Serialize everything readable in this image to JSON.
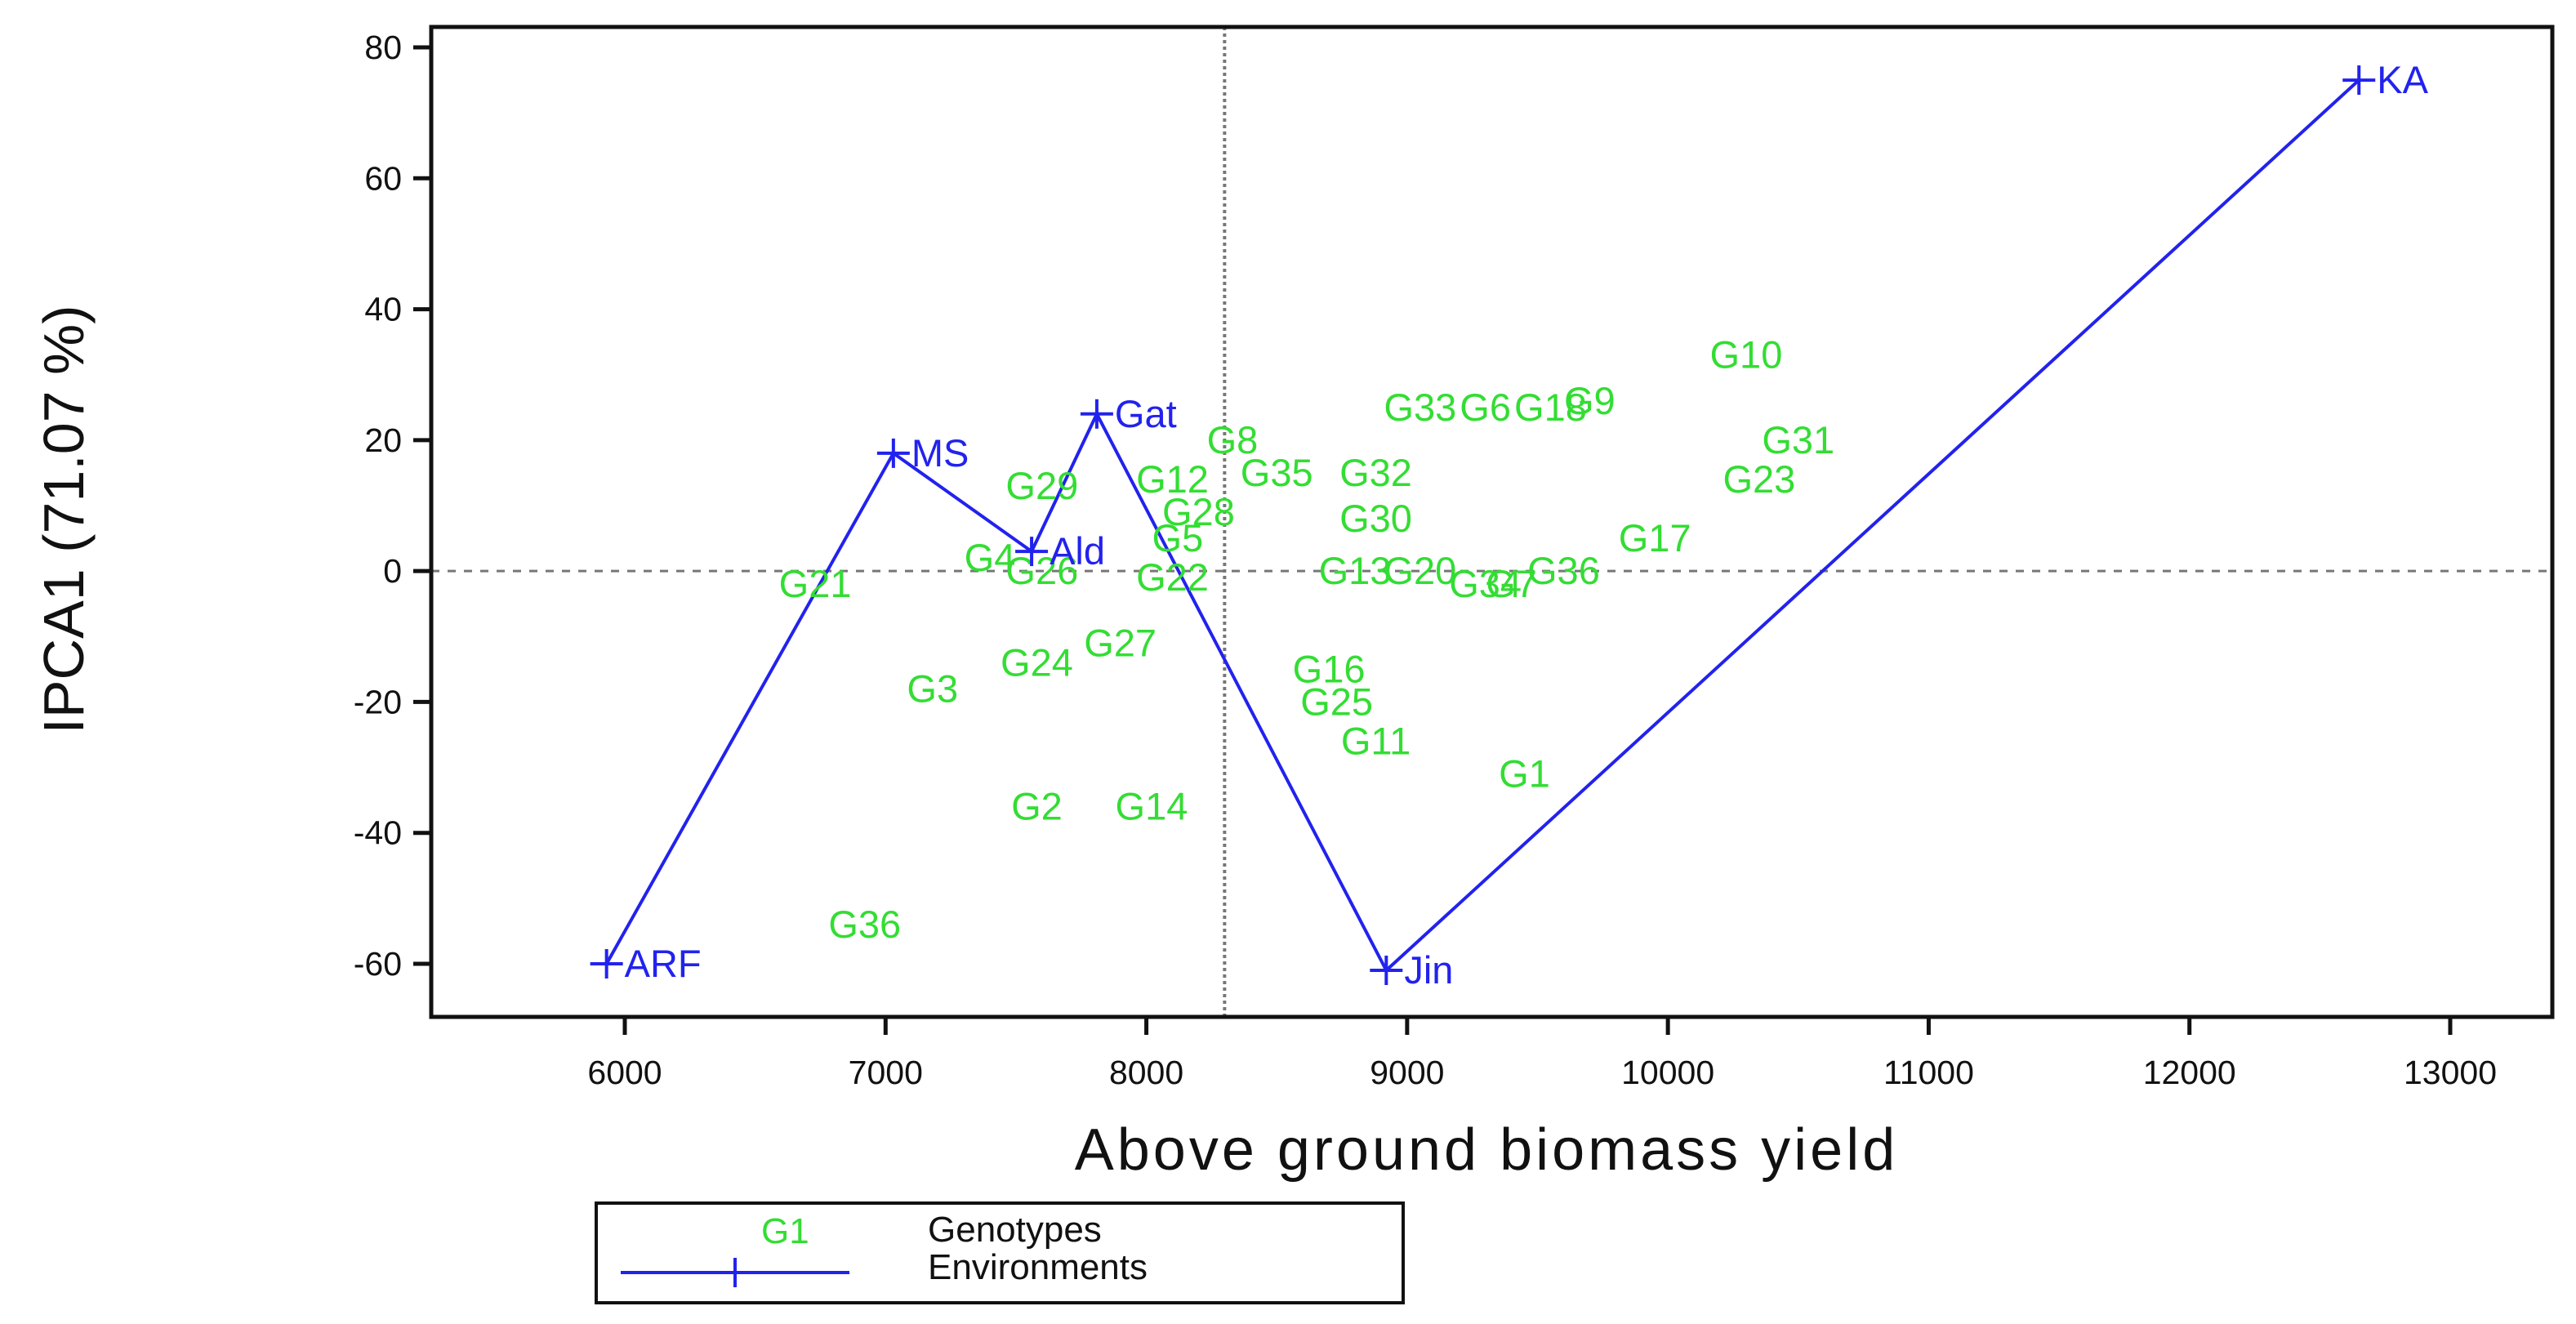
{
  "chart_data": {
    "type": "scatter",
    "xlabel": "Above ground biomass yield",
    "ylabel": "IPCA1 (71.07 %)",
    "xlim": [
      5450,
      13400
    ],
    "ylim": [
      -68,
      83
    ],
    "x_ticks": [
      6000,
      7000,
      8000,
      9000,
      10000,
      11000,
      12000,
      13000
    ],
    "y_ticks": [
      80,
      60,
      40,
      20,
      0,
      -20,
      -40,
      -60
    ],
    "reference_lines": {
      "vertical_x": 8300,
      "horizontal_y": 0
    },
    "genotypes": [
      {
        "label": "G10",
        "x": 10300,
        "y": 33
      },
      {
        "label": "G9",
        "x": 9700,
        "y": 26
      },
      {
        "label": "G18",
        "x": 9550,
        "y": 25
      },
      {
        "label": "G6",
        "x": 9300,
        "y": 25
      },
      {
        "label": "G33",
        "x": 9050,
        "y": 25
      },
      {
        "label": "G31",
        "x": 10500,
        "y": 20
      },
      {
        "label": "G23",
        "x": 10350,
        "y": 14
      },
      {
        "label": "G8",
        "x": 8330,
        "y": 20
      },
      {
        "label": "G32",
        "x": 8880,
        "y": 15
      },
      {
        "label": "G35",
        "x": 8500,
        "y": 15
      },
      {
        "label": "G29",
        "x": 7600,
        "y": 13
      },
      {
        "label": "G12",
        "x": 8100,
        "y": 14
      },
      {
        "label": "G28",
        "x": 8200,
        "y": 9
      },
      {
        "label": "G30",
        "x": 8880,
        "y": 8
      },
      {
        "label": "G5",
        "x": 8120,
        "y": 5
      },
      {
        "label": "G17",
        "x": 9950,
        "y": 5
      },
      {
        "label": "G4",
        "x": 7400,
        "y": 2
      },
      {
        "label": "G26",
        "x": 7600,
        "y": 0
      },
      {
        "label": "G22",
        "x": 8100,
        "y": -1
      },
      {
        "label": "G13",
        "x": 8800,
        "y": 0
      },
      {
        "label": "G20",
        "x": 9050,
        "y": 0
      },
      {
        "label": "G34",
        "x": 9300,
        "y": -2
      },
      {
        "label": "G7",
        "x": 9400,
        "y": -2
      },
      {
        "label": "G36",
        "x": 9600,
        "y": 0
      },
      {
        "label": "G21",
        "x": 6730,
        "y": -2
      },
      {
        "label": "G27",
        "x": 7900,
        "y": -11
      },
      {
        "label": "G24",
        "x": 7580,
        "y": -14
      },
      {
        "label": "G3",
        "x": 7180,
        "y": -18
      },
      {
        "label": "G16",
        "x": 8700,
        "y": -15
      },
      {
        "label": "G25",
        "x": 8730,
        "y": -20
      },
      {
        "label": "G11",
        "x": 8880,
        "y": -26
      },
      {
        "label": "G1",
        "x": 9450,
        "y": -31
      },
      {
        "label": "G2",
        "x": 7580,
        "y": -36
      },
      {
        "label": "G14",
        "x": 8020,
        "y": -36
      },
      {
        "label": "G36",
        "x": 6920,
        "y": -54
      }
    ],
    "environments": [
      {
        "label": "ARF",
        "x": 5930,
        "y": -60
      },
      {
        "label": "MS",
        "x": 7030,
        "y": 18
      },
      {
        "label": "Ald",
        "x": 7560,
        "y": 3
      },
      {
        "label": "Gat",
        "x": 7810,
        "y": 24
      },
      {
        "label": "Jin",
        "x": 8920,
        "y": -61
      },
      {
        "label": "KA",
        "x": 12650,
        "y": 75
      }
    ],
    "legend": {
      "position": "bottom-left",
      "entries": [
        {
          "sample": "G1",
          "label": "Genotypes"
        },
        {
          "sample": "line-with-plus",
          "label": "Environments"
        }
      ]
    },
    "colors": {
      "genotypes": "#33dd33",
      "environments": "#2222ee"
    },
    "grid": false
  }
}
